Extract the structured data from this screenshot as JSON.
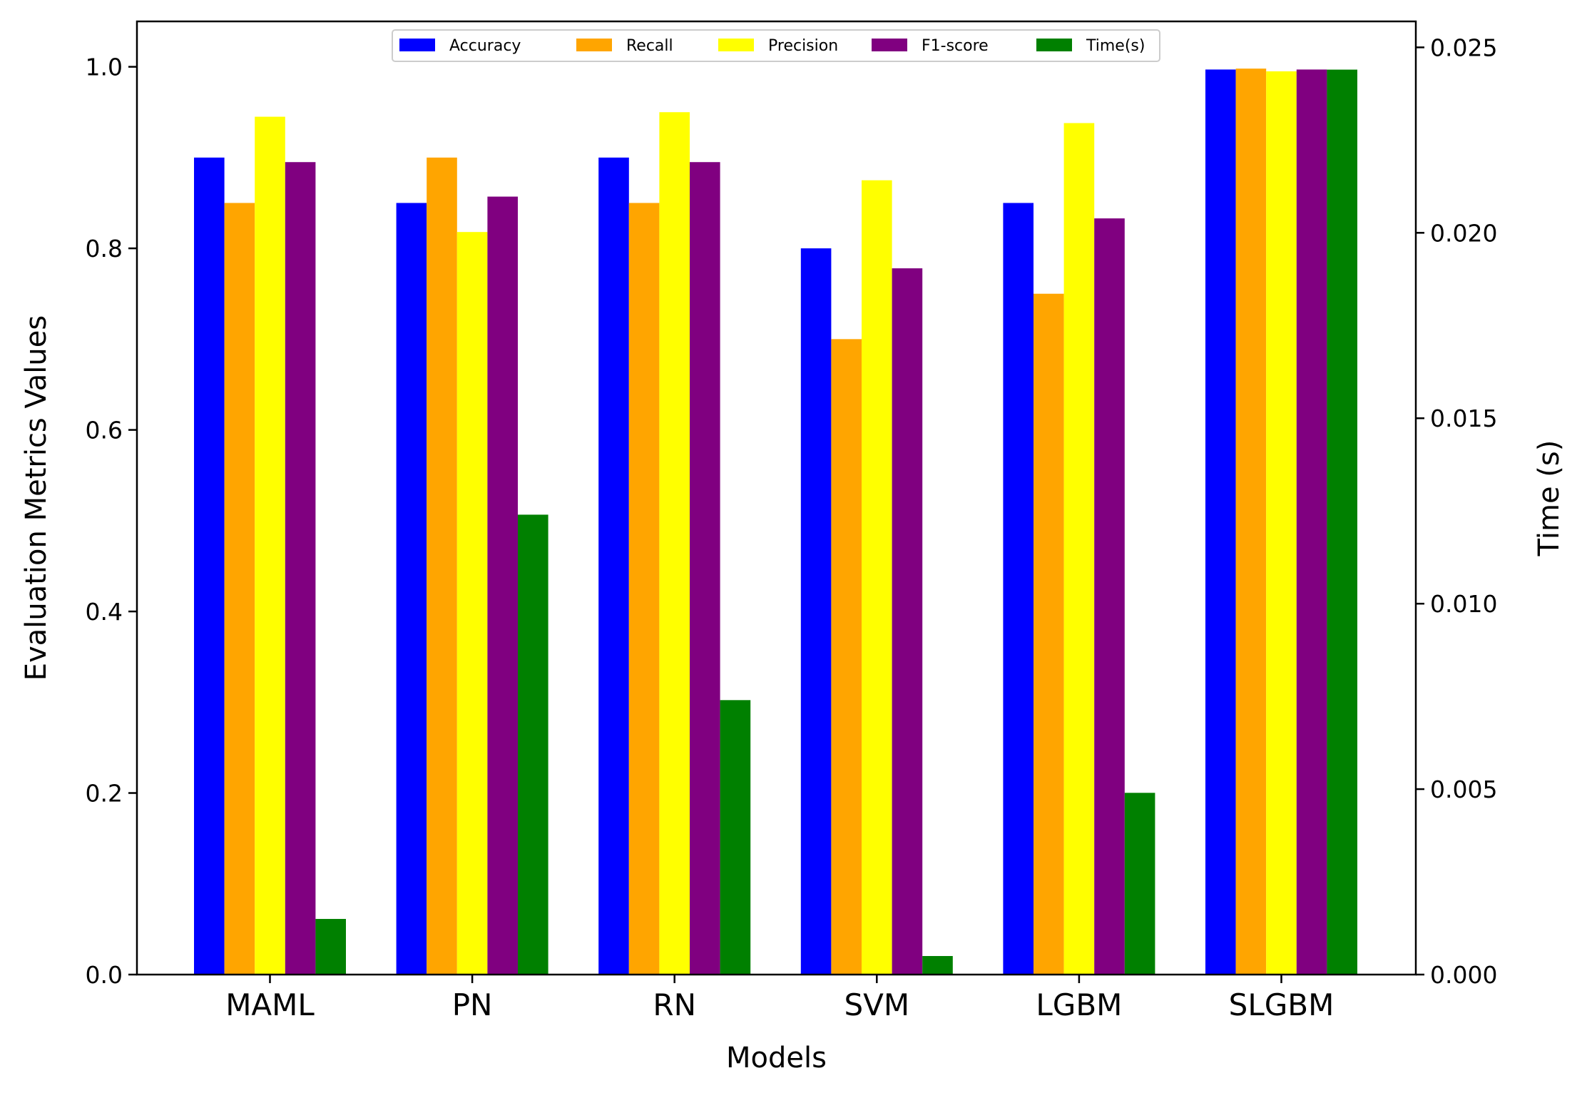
{
  "chart_data": {
    "type": "bar",
    "title": "",
    "xlabel": "Models",
    "ylabel": "Evaluation Metrics Values",
    "y2label": "Time (s)",
    "categories": [
      "MAML",
      "PN",
      "RN",
      "SVM",
      "LGBM",
      "SLGBM"
    ],
    "ylim": [
      0,
      1.05
    ],
    "y2lim": [
      0,
      0.0257
    ],
    "yticks": [
      {
        "value": 0.0,
        "label": "0.0"
      },
      {
        "value": 0.2,
        "label": "0.2"
      },
      {
        "value": 0.4,
        "label": "0.4"
      },
      {
        "value": 0.6,
        "label": "0.6"
      },
      {
        "value": 0.8,
        "label": "0.8"
      },
      {
        "value": 1.0,
        "label": "1.0"
      }
    ],
    "y2ticks": [
      {
        "value": 0.0,
        "label": "0.000"
      },
      {
        "value": 0.005,
        "label": "0.005"
      },
      {
        "value": 0.01,
        "label": "0.010"
      },
      {
        "value": 0.015,
        "label": "0.015"
      },
      {
        "value": 0.02,
        "label": "0.020"
      },
      {
        "value": 0.025,
        "label": "0.025"
      }
    ],
    "grid": false,
    "legend_position": "top-center",
    "series": [
      {
        "name": "Accuracy",
        "color": "#0000ff",
        "axis": "left",
        "values": [
          0.9,
          0.85,
          0.9,
          0.8,
          0.85,
          0.997
        ]
      },
      {
        "name": "Recall",
        "color": "#ffa500",
        "axis": "left",
        "values": [
          0.85,
          0.9,
          0.85,
          0.7,
          0.75,
          0.998
        ]
      },
      {
        "name": "Precision",
        "color": "#ffff00",
        "axis": "left",
        "values": [
          0.945,
          0.818,
          0.95,
          0.875,
          0.938,
          0.995
        ]
      },
      {
        "name": "F1-score",
        "color": "#800080",
        "axis": "left",
        "values": [
          0.895,
          0.857,
          0.895,
          0.778,
          0.833,
          0.997
        ]
      },
      {
        "name": "Time(s)",
        "color": "#008000",
        "axis": "right",
        "values": [
          0.0015,
          0.0124,
          0.0074,
          0.0005,
          0.0049,
          0.0244
        ]
      }
    ]
  }
}
